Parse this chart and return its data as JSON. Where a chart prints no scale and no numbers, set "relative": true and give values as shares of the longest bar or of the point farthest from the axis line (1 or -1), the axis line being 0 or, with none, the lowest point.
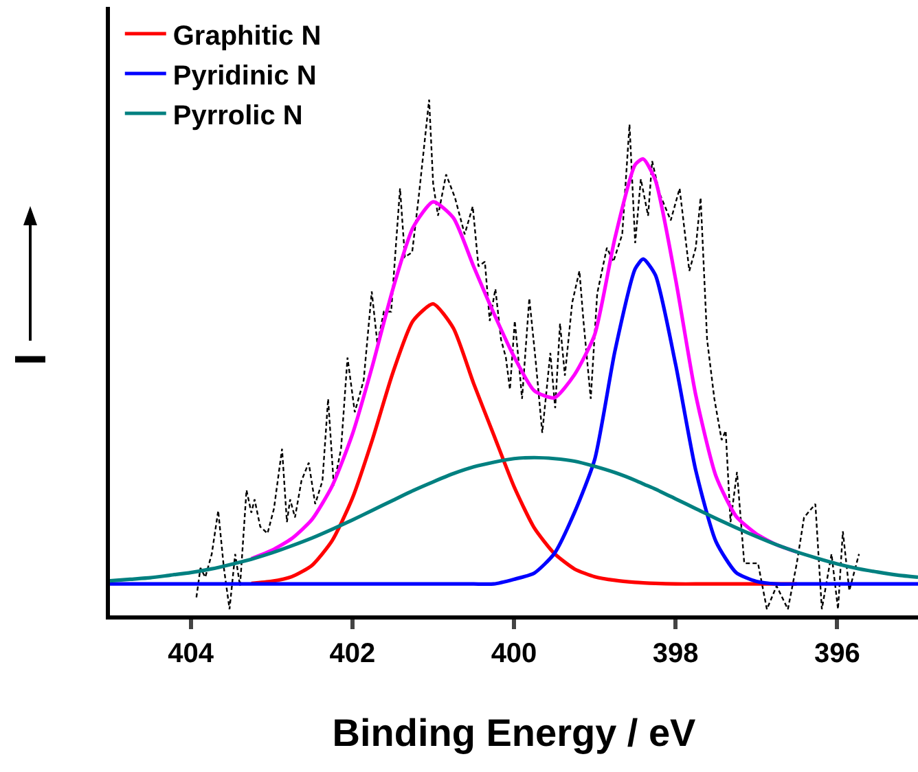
{
  "chart_data": {
    "type": "line",
    "relative": true,
    "xlabel": "Binding Energy / eV",
    "ylabel": "I",
    "xlim": [
      405,
      395
    ],
    "xticks": [
      404,
      402,
      400,
      398,
      396
    ],
    "x": [
      405,
      404.75,
      404.5,
      404.25,
      404,
      403.75,
      403.5,
      403.25,
      403,
      402.75,
      402.5,
      402.25,
      402,
      401.75,
      401.5,
      401.25,
      401,
      400.75,
      400.5,
      400.25,
      400,
      399.75,
      399.5,
      399.25,
      399,
      398.75,
      398.5,
      398.4,
      398.25,
      398,
      397.75,
      397.5,
      397.25,
      397,
      396.75,
      396.5,
      396.25,
      396,
      395.75,
      395.5,
      395.25,
      395
    ],
    "series": [
      {
        "x": [
          403.93,
          403.88,
          403.82,
          403.74,
          403.66,
          403.59,
          403.52,
          403.45,
          403.39,
          403.31,
          403.25,
          403.21,
          403.14,
          403.05,
          402.97,
          402.87,
          402.81,
          402.77,
          402.71,
          402.63,
          402.54,
          402.46,
          402.37,
          402.3,
          402.23,
          402.14,
          402.06,
          401.97,
          401.86,
          401.76,
          401.69,
          401.61,
          401.52,
          401.41,
          401.35,
          401.26,
          401.18,
          401.05,
          401.0,
          400.94,
          400.84,
          400.73,
          400.61,
          400.51,
          400.44,
          400.36,
          400.3,
          400.23,
          400.16,
          400.1,
          400.05,
          399.99,
          399.93,
          399.9,
          399.81,
          399.73,
          399.65,
          399.55,
          399.49,
          399.43,
          399.37,
          399.28,
          399.19,
          399.14,
          399.05,
          398.97,
          398.85,
          398.77,
          398.66,
          398.57,
          398.5,
          398.43,
          398.34,
          398.29,
          398.2,
          398.06,
          397.95,
          397.83,
          397.75,
          397.69,
          397.61,
          397.52,
          397.43,
          397.38,
          397.32,
          397.24,
          397.15,
          396.98,
          396.87,
          396.75,
          396.61,
          396.5,
          396.41,
          396.27,
          396.19,
          396.07,
          395.99,
          395.93,
          395.85,
          395.73
        ],
        "color": "#000000",
        "line_style": "dashed",
        "values": [
          0.035,
          0.092,
          0.074,
          0.119,
          0.203,
          0.092,
          0.012,
          0.119,
          0.057,
          0.243,
          0.199,
          0.225,
          0.172,
          0.159,
          0.207,
          0.323,
          0.181,
          0.225,
          0.19,
          0.261,
          0.296,
          0.216,
          0.261,
          0.42,
          0.252,
          0.323,
          0.5,
          0.394,
          0.456,
          0.628,
          0.527,
          0.589,
          0.589,
          0.828,
          0.695,
          0.704,
          0.81,
          1.0,
          0.837,
          0.775,
          0.855,
          0.81,
          0.739,
          0.793,
          0.677,
          0.686,
          0.571,
          0.633,
          0.535,
          0.5,
          0.438,
          0.571,
          0.473,
          0.42,
          0.615,
          0.491,
          0.354,
          0.509,
          0.402,
          0.566,
          0.465,
          0.606,
          0.668,
          0.571,
          0.42,
          0.624,
          0.713,
          0.686,
          0.739,
          0.952,
          0.722,
          0.846,
          0.775,
          0.881,
          0.819,
          0.766,
          0.828,
          0.668,
          0.713,
          0.81,
          0.535,
          0.42,
          0.34,
          0.358,
          0.181,
          0.278,
          0.101,
          0.101,
          0.012,
          0.057,
          0.012,
          0.101,
          0.19,
          0.216,
          0.012,
          0.119,
          0.012,
          0.163,
          0.048,
          0.119
        ]
      },
      {
        "color": "#ff00ff",
        "line_style": "solid",
        "values": [
          null,
          null,
          null,
          null,
          null,
          null,
          null,
          0.11,
          0.126,
          0.149,
          0.186,
          0.251,
          0.351,
          0.485,
          0.632,
          0.752,
          0.802,
          0.771,
          0.677,
          0.586,
          0.502,
          0.436,
          0.422,
          0.467,
          0.545,
          0.732,
          0.874,
          0.885,
          0.844,
          0.652,
          0.427,
          0.27,
          0.192,
          0.158,
          0.137,
          0.123,
          null,
          null,
          null,
          null,
          null,
          null
        ]
      },
      {
        "name": "Graphitic N",
        "color": "#ff0000",
        "line_style": "solid",
        "values": [
          null,
          null,
          null,
          null,
          null,
          null,
          null,
          0.062,
          0.066,
          0.075,
          0.097,
          0.145,
          0.227,
          0.342,
          0.47,
          0.571,
          0.604,
          0.557,
          0.45,
          0.35,
          0.25,
          0.17,
          0.12,
          0.09,
          0.075,
          0.068,
          0.064,
          0.063,
          0.062,
          0.061,
          0.061,
          0.061,
          0.061,
          0.061,
          0.061,
          0.061,
          null,
          null,
          null,
          null,
          null,
          null
        ]
      },
      {
        "name": "Pyridinic N",
        "color": "#0000ff",
        "line_style": "solid",
        "values": [
          0.061,
          0.061,
          0.061,
          0.061,
          0.061,
          0.061,
          0.061,
          0.061,
          0.061,
          0.061,
          0.061,
          0.061,
          0.061,
          0.061,
          0.061,
          0.061,
          0.061,
          0.061,
          0.061,
          0.061,
          0.07,
          0.082,
          0.12,
          0.2,
          0.303,
          0.513,
          0.672,
          0.691,
          0.66,
          0.487,
          0.281,
          0.143,
          0.083,
          0.066,
          0.061,
          0.061,
          0.061,
          0.061,
          0.061,
          0.061,
          0.061,
          0.061
        ]
      },
      {
        "name": "Pyrrolic N",
        "color": "#008080",
        "line_style": "solid",
        "values": [
          0.067,
          0.07,
          0.073,
          0.078,
          0.083,
          0.09,
          0.099,
          0.109,
          0.121,
          0.135,
          0.15,
          0.167,
          0.185,
          0.204,
          0.223,
          0.242,
          0.259,
          0.275,
          0.288,
          0.297,
          0.304,
          0.306,
          0.304,
          0.299,
          0.289,
          0.277,
          0.262,
          0.255,
          0.245,
          0.226,
          0.207,
          0.188,
          0.17,
          0.153,
          0.137,
          0.123,
          0.111,
          0.1,
          0.091,
          0.084,
          0.078,
          0.074
        ]
      }
    ],
    "legend": "top left",
    "grid": false,
    "marker": "none",
    "tick_labels": "x"
  }
}
